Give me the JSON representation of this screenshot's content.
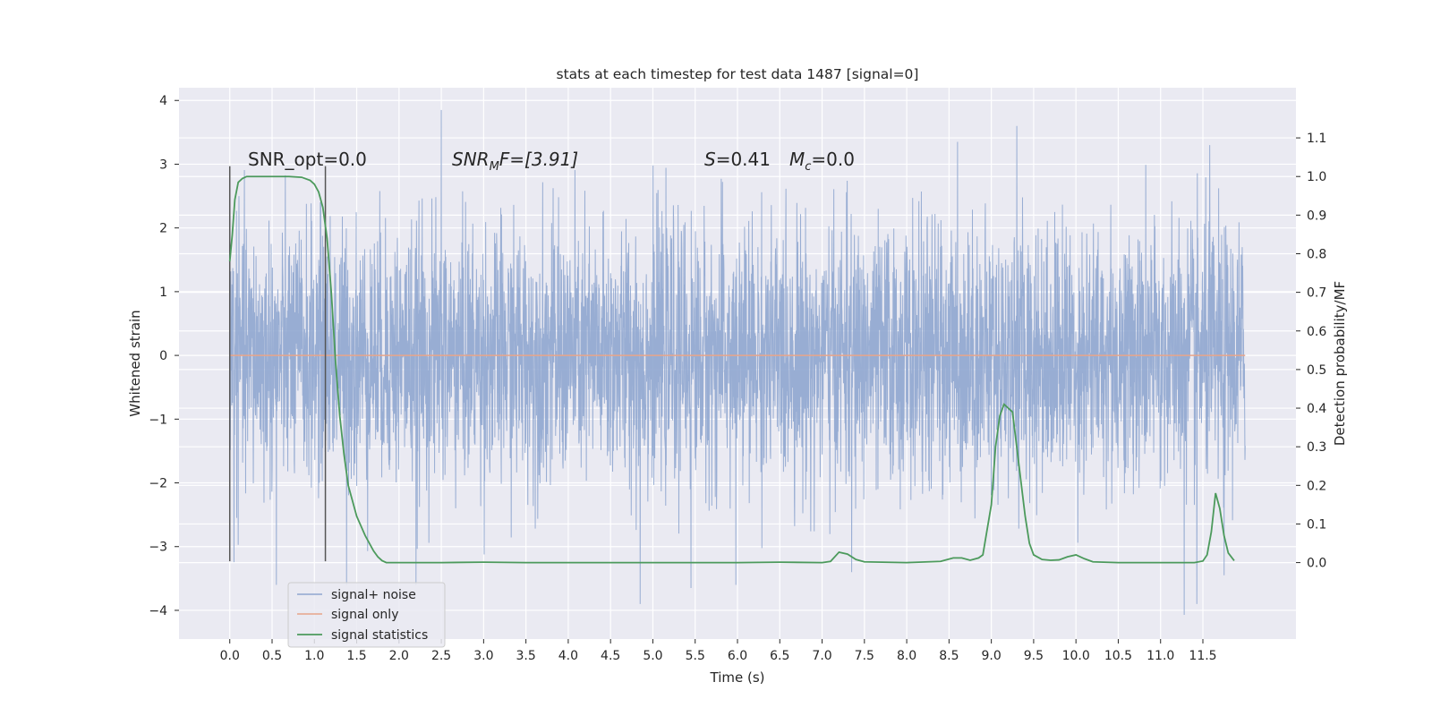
{
  "chart_data": {
    "type": "line",
    "title": "stats at each timestep for test data 1487 [signal=0]",
    "xlabel": "Time (s)",
    "ylabel": "Whitened strain",
    "ylabel_right": "Detection probability/MF",
    "xlim": [
      -0.6,
      12.6
    ],
    "ylim": [
      -4.45,
      4.2
    ],
    "ylim_right": [
      -0.198,
      1.23
    ],
    "x_ticks": [
      "0.0",
      "0.5",
      "1.0",
      "1.5",
      "2.0",
      "2.5",
      "3.0",
      "3.5",
      "4.0",
      "4.5",
      "5.0",
      "5.5",
      "6.0",
      "6.5",
      "7.0",
      "7.5",
      "8.0",
      "8.5",
      "9.0",
      "9.5",
      "10.0",
      "10.5",
      "11.0",
      "11.5"
    ],
    "y_ticks": [
      "4",
      "3",
      "2",
      "1",
      "0",
      "−1",
      "−2",
      "−3",
      "−4"
    ],
    "y_ticks_right": [
      "1.1",
      "1.0",
      "0.9",
      "0.8",
      "0.7",
      "0.6",
      "0.5",
      "0.4",
      "0.3",
      "0.2",
      "0.1",
      "0.0"
    ],
    "annotations": {
      "snr_opt": "SNR_opt=0.0",
      "snr_mf_sym": "SNR",
      "snr_mf_sub": "M",
      "snr_mf_rest": "F=[3.91]",
      "s_sym": "S",
      "s_val": "=0.41",
      "mc_sym": "M",
      "mc_sub": "c",
      "mc_val": "=0.0"
    },
    "vlines_x": [
      0.0,
      1.13
    ],
    "series": [
      {
        "name": "signal+ noise",
        "color": "#8fa6cf",
        "axis": "left",
        "kind": "noise",
        "x_range": [
          0.0,
          12.0
        ],
        "std": 1.0,
        "peaks": [
          [
            2.5,
            3.85
          ],
          [
            9.3,
            3.6
          ],
          [
            8.6,
            3.35
          ],
          [
            11.58,
            3.3
          ],
          [
            1.38,
            -3.6
          ],
          [
            2.2,
            -3.6
          ],
          [
            4.85,
            -3.9
          ],
          [
            5.45,
            -3.65
          ],
          [
            5.98,
            -3.6
          ],
          [
            11.28,
            -4.07
          ],
          [
            11.43,
            -3.9
          ],
          [
            11.75,
            -3.45
          ],
          [
            0.55,
            -3.6
          ],
          [
            7.35,
            -3.4
          ]
        ]
      },
      {
        "name": "signal only",
        "color": "#e8a58a",
        "axis": "left",
        "x": [
          0.0,
          12.0
        ],
        "y": [
          0.0,
          0.0
        ]
      },
      {
        "name": "signal statistics",
        "color": "#4c9a5c",
        "axis": "right",
        "x": [
          0.0,
          0.03,
          0.06,
          0.1,
          0.15,
          0.2,
          0.3,
          0.5,
          0.7,
          0.85,
          0.95,
          1.0,
          1.05,
          1.1,
          1.15,
          1.2,
          1.25,
          1.3,
          1.35,
          1.4,
          1.5,
          1.6,
          1.7,
          1.75,
          1.8,
          1.85,
          2.0,
          2.5,
          3.0,
          3.5,
          4.0,
          5.0,
          6.0,
          6.5,
          7.0,
          7.1,
          7.2,
          7.3,
          7.4,
          7.5,
          8.0,
          8.4,
          8.55,
          8.65,
          8.75,
          8.85,
          8.9,
          9.0,
          9.05,
          9.1,
          9.15,
          9.25,
          9.3,
          9.4,
          9.45,
          9.5,
          9.6,
          9.7,
          9.8,
          9.9,
          10.0,
          10.1,
          10.2,
          10.5,
          11.0,
          11.4,
          11.5,
          11.55,
          11.6,
          11.65,
          11.7,
          11.75,
          11.8,
          11.87
        ],
        "y": [
          0.78,
          0.85,
          0.94,
          0.985,
          0.995,
          1.0,
          1.0,
          1.0,
          1.0,
          0.998,
          0.99,
          0.98,
          0.96,
          0.92,
          0.84,
          0.7,
          0.52,
          0.38,
          0.28,
          0.2,
          0.12,
          0.07,
          0.03,
          0.015,
          0.005,
          0.0,
          0.0,
          0.0,
          0.001,
          0.0,
          0.0,
          0.0,
          0.0,
          0.001,
          0.0,
          0.003,
          0.027,
          0.022,
          0.008,
          0.002,
          0.0,
          0.003,
          0.012,
          0.012,
          0.006,
          0.012,
          0.02,
          0.15,
          0.3,
          0.38,
          0.41,
          0.39,
          0.3,
          0.12,
          0.05,
          0.02,
          0.008,
          0.006,
          0.007,
          0.015,
          0.02,
          0.01,
          0.002,
          0.0,
          0.0,
          0.0,
          0.004,
          0.02,
          0.08,
          0.18,
          0.14,
          0.07,
          0.025,
          0.005
        ]
      }
    ],
    "legend": {
      "placement": "lower-left",
      "entries": [
        "signal+ noise",
        "signal only",
        "signal statistics"
      ]
    }
  }
}
